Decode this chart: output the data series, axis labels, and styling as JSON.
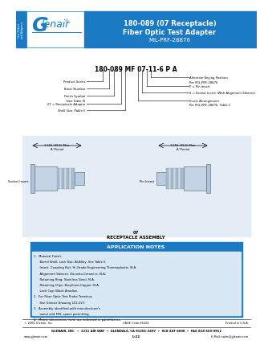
{
  "title_line1": "180-089 (07 Receptacle)",
  "title_line2": "Fiber Optic Test Adapter",
  "title_line3": "MIL-PRF-28876",
  "header_bg": "#1a7ac4",
  "header_text_color": "#ffffff",
  "side_tab_text": "Test Probes\nand Adapters",
  "part_number": "180-089 MF 07-11-6 P A",
  "label_left": [
    "Product Series",
    "Basic Number",
    "Finish Symbol\n(See Table II)",
    "07 = Receptacle Adapter",
    "Shell Size (Table I)"
  ],
  "label_right": [
    "Alternate Keying Position\nPer MIL-PRF-28876",
    "P = Pin Insert",
    "S = Socket Insert (With Alignment Sleeves)",
    "Insert Arrangement\nPer MIL-PRF-28876, Table 1"
  ],
  "dim_text": "1.555 (39.5) Max\nA Thread",
  "label_socket": "Socket Insert",
  "label_pin": "Pin Insert",
  "assembly_label1": "07",
  "assembly_label2": "RECEPTACLE ASSEMBLY",
  "app_notes_title": "APPLICATION NOTES",
  "app_notes_bg": "#1a7ac4",
  "app_notes_inner_bg": "#d8e8f4",
  "app_notes": [
    "1.  Material Finish:",
    "      Barrel Shell, Lock Nut: Al-Alloy: See Table II.",
    "      Insert, Coupling Nut: Hi-Grade Engineering Thermoplastic: N.A.",
    "      Alignment Sleeves: Zirconia-Ceramics: N.A.",
    "      Retaining Ring: Stainless Steel: N.A.",
    "      Retaining Clips: Beryllium-Copper: N.A.",
    "      Lock Cap: Black Anodize.",
    "2.  For Fiber Optic Test Probe Terminus",
    "      See Glenair Drawing 101-027.",
    "3.  Assembly identified with manufacturer's",
    "      name and P/N, space permitting.",
    "4.  Metric dimensions (mm) are indicated in parentheses."
  ],
  "footer_copy": "© 2006 Glenair, Inc.",
  "footer_cage": "CAGE Code 06324",
  "footer_printed": "Printed in U.S.A.",
  "footer_address": "GLENAIR, INC.  •  1211 AIR WAY  •  GLENDALE, CA 91201-2497  •  818-247-6000  •  FAX 818-500-9912",
  "footer_web": "www.glenair.com",
  "footer_page": "L-22",
  "footer_email": "E-Mail: sales@glenair.com",
  "body_bg": "#ffffff"
}
